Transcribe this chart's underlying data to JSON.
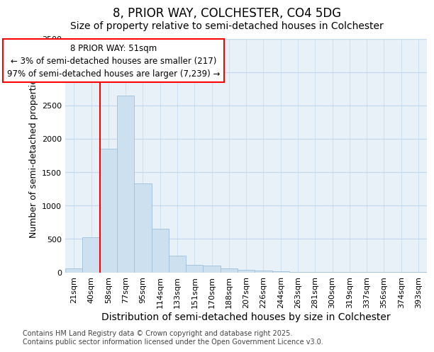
{
  "title": "8, PRIOR WAY, COLCHESTER, CO4 5DG",
  "subtitle": "Size of property relative to semi-detached houses in Colchester",
  "xlabel": "Distribution of semi-detached houses by size in Colchester",
  "ylabel": "Number of semi-detached properties",
  "bin_labels": [
    "21sqm",
    "40sqm",
    "58sqm",
    "77sqm",
    "95sqm",
    "114sqm",
    "133sqm",
    "151sqm",
    "170sqm",
    "188sqm",
    "207sqm",
    "226sqm",
    "244sqm",
    "263sqm",
    "281sqm",
    "300sqm",
    "319sqm",
    "337sqm",
    "356sqm",
    "374sqm",
    "393sqm"
  ],
  "bar_heights": [
    60,
    530,
    1850,
    2650,
    1330,
    650,
    250,
    110,
    100,
    55,
    40,
    25,
    15,
    10,
    5,
    5,
    2,
    2,
    1,
    1,
    1
  ],
  "bar_color": "#cce0f0",
  "bar_edgecolor": "#a0c0dc",
  "ylim": [
    0,
    3500
  ],
  "yticks": [
    0,
    500,
    1000,
    1500,
    2000,
    2500,
    3000,
    3500
  ],
  "red_line_x": 1.5,
  "annotation_line1": "8 PRIOR WAY: 51sqm",
  "annotation_line2": "← 3% of semi-detached houses are smaller (217)",
  "annotation_line3": "97% of semi-detached houses are larger (7,239) →",
  "footer_line1": "Contains HM Land Registry data © Crown copyright and database right 2025.",
  "footer_line2": "Contains public sector information licensed under the Open Government Licence v3.0.",
  "background_color": "#ffffff",
  "plot_bg_color": "#e8f0f8",
  "grid_color": "#c0d8f0",
  "title_fontsize": 12,
  "subtitle_fontsize": 10,
  "tick_fontsize": 8,
  "ylabel_fontsize": 9,
  "xlabel_fontsize": 10,
  "annotation_fontsize": 8.5,
  "footer_fontsize": 7
}
